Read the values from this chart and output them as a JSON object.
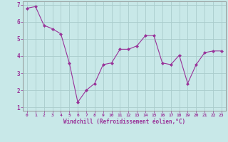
{
  "x": [
    0,
    1,
    2,
    3,
    4,
    5,
    6,
    7,
    8,
    9,
    10,
    11,
    12,
    13,
    14,
    15,
    16,
    17,
    18,
    19,
    20,
    21,
    22,
    23
  ],
  "y": [
    6.8,
    6.9,
    5.8,
    5.6,
    5.3,
    3.6,
    1.3,
    2.0,
    2.4,
    3.5,
    3.6,
    4.4,
    4.4,
    4.6,
    5.2,
    5.2,
    3.6,
    3.5,
    4.05,
    2.4,
    3.5,
    4.2,
    4.3,
    4.3
  ],
  "line_color": "#993399",
  "marker_color": "#993399",
  "bg_color": "#c8e8e8",
  "grid_color": "#aacccc",
  "xlabel": "Windchill (Refroidissement éolien,°C)",
  "xlabel_color": "#993399",
  "tick_color": "#993399",
  "ylim": [
    0.8,
    7.2
  ],
  "xlim": [
    -0.5,
    23.5
  ],
  "yticks": [
    1,
    2,
    3,
    4,
    5,
    6,
    7
  ],
  "xtick_labels": [
    "0",
    "1",
    "2",
    "3",
    "4",
    "5",
    "6",
    "7",
    "8",
    "9",
    "10",
    "11",
    "12",
    "13",
    "14",
    "15",
    "16",
    "17",
    "18",
    "19",
    "20",
    "21",
    "22",
    "23"
  ],
  "spine_color": "#888888"
}
